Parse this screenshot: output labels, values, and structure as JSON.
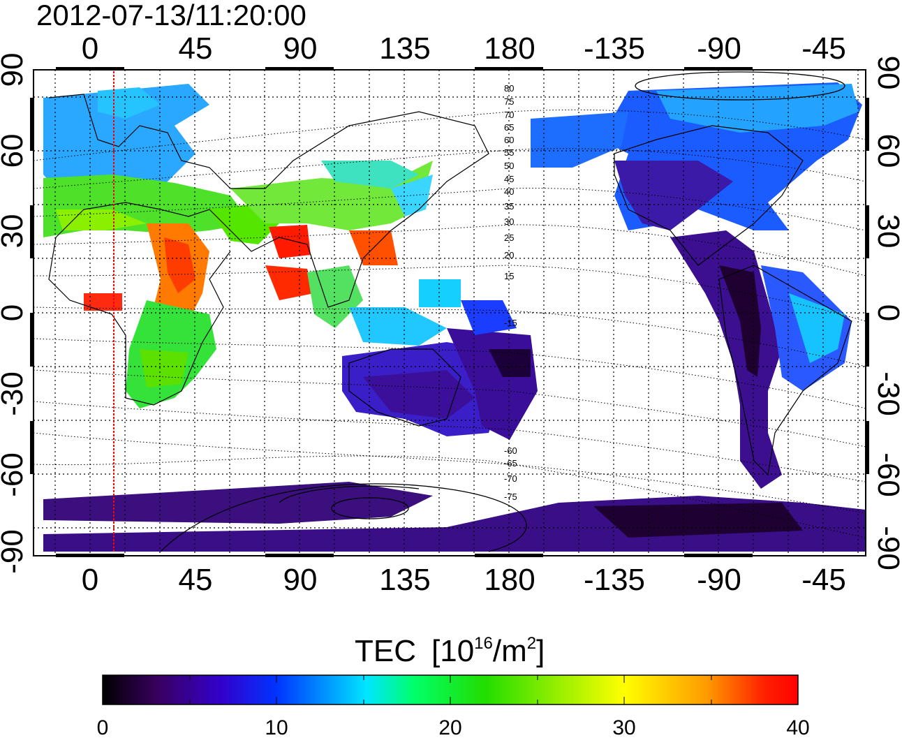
{
  "title": "2012-07-13/11:20:00",
  "map": {
    "lon_top_labels": [
      "0",
      "45",
      "90",
      "135",
      "180",
      "-135",
      "-90",
      "-45"
    ],
    "lon_bottom_labels": [
      "0",
      "45",
      "90",
      "135",
      "180",
      "-135",
      "-90",
      "-45"
    ],
    "lat_left_labels": [
      "90",
      "60",
      "30",
      "0",
      "-30",
      "-60",
      "-90"
    ],
    "lat_right_labels": [
      "90",
      "60",
      "30",
      "0",
      "-30",
      "-60",
      "-90"
    ],
    "contour_labels_north": [
      "80",
      "75",
      "70",
      "65",
      "60",
      "55",
      "50",
      "45",
      "40",
      "35",
      "30",
      "25",
      "20",
      "15"
    ],
    "contour_labels_south": [
      "-15",
      "-60",
      "-65",
      "-70",
      "-75"
    ],
    "terminator_color": "#ff0000"
  },
  "colorbar": {
    "label": "TEC",
    "unit_base": "[10",
    "unit_exp": "16",
    "unit_mid": "/m",
    "unit_exp2": "2",
    "unit_end": "]",
    "ticks": [
      "0",
      "10",
      "20",
      "30",
      "40"
    ],
    "range": [
      0,
      40
    ],
    "colors": [
      "#000000",
      "#3a0060",
      "#3300cc",
      "#0033ff",
      "#00e6ff",
      "#00ff66",
      "#22dd00",
      "#ffff00",
      "#ff9900",
      "#ff2200",
      "#ff0000"
    ]
  }
}
